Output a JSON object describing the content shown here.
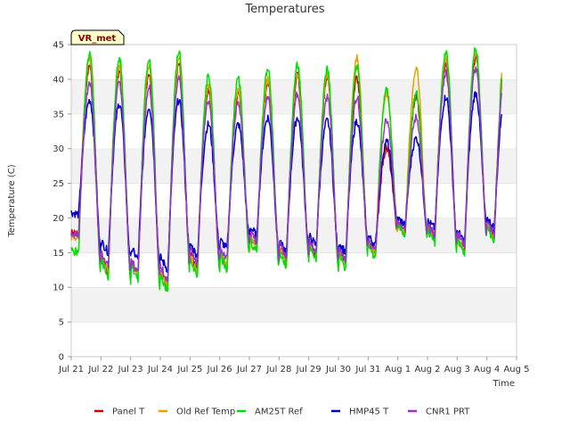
{
  "chart_data": {
    "type": "line",
    "title": "Temperatures",
    "xlabel": "Time",
    "ylabel": "Temperature (C)",
    "badge": "VR_met",
    "ylim": [
      0,
      45
    ],
    "yticks": [
      0,
      5,
      10,
      15,
      20,
      25,
      30,
      35,
      40,
      45
    ],
    "xlim": [
      0,
      15
    ],
    "xticks": [
      {
        "v": 0,
        "label": "Jul 21"
      },
      {
        "v": 1,
        "label": "Jul 22"
      },
      {
        "v": 2,
        "label": "Jul 23"
      },
      {
        "v": 3,
        "label": "Jul 24"
      },
      {
        "v": 4,
        "label": "Jul 25"
      },
      {
        "v": 5,
        "label": "Jul 26"
      },
      {
        "v": 6,
        "label": "Jul 27"
      },
      {
        "v": 7,
        "label": "Jul 28"
      },
      {
        "v": 8,
        "label": "Jul 29"
      },
      {
        "v": 9,
        "label": "Jul 30"
      },
      {
        "v": 10,
        "label": "Jul 31"
      },
      {
        "v": 11,
        "label": "Aug 1"
      },
      {
        "v": 12,
        "label": "Aug 2"
      },
      {
        "v": 13,
        "label": "Aug 3"
      },
      {
        "v": 14,
        "label": "Aug 4"
      },
      {
        "v": 15,
        "label": "Aug 5"
      }
    ],
    "x_unit": "days since Jul 21 00:00",
    "days": [
      0,
      1,
      2,
      3,
      4,
      5,
      6,
      7,
      8,
      9,
      10,
      11,
      12,
      13,
      14
    ],
    "grid": "horizontal bands",
    "legend_position": "bottom",
    "series": [
      {
        "name": "Panel T",
        "color": "#cc0000",
        "min": [
          17.5,
          12.0,
          11.5,
          10.0,
          12.5,
          13.0,
          16.0,
          14.0,
          14.5,
          13.5,
          15.0,
          18.0,
          17.5,
          15.0,
          17.5,
          23.5
        ],
        "max": [
          42.0,
          41.0,
          41.0,
          42.0,
          38.5,
          38.0,
          39.5,
          40.5,
          40.0,
          40.0,
          30.0,
          37.5,
          42.5,
          43.0
        ]
      },
      {
        "name": "Old Ref Temp",
        "color": "#e8a000",
        "min": [
          17.0,
          12.5,
          11.5,
          10.0,
          12.0,
          13.0,
          15.5,
          13.5,
          14.5,
          13.0,
          14.5,
          18.0,
          17.0,
          15.0,
          17.0,
          23.0
        ],
        "max": [
          43.0,
          42.0,
          42.0,
          43.0,
          39.0,
          38.5,
          40.0,
          41.0,
          40.5,
          43.0,
          38.0,
          41.5,
          43.0,
          44.0
        ]
      },
      {
        "name": "AM25T Ref",
        "color": "#00e000",
        "min": [
          15.0,
          11.5,
          11.0,
          9.0,
          11.5,
          12.5,
          15.0,
          13.0,
          14.0,
          12.5,
          14.0,
          17.5,
          16.5,
          14.5,
          16.5,
          22.0
        ],
        "max": [
          43.5,
          43.0,
          43.0,
          44.0,
          40.5,
          40.0,
          41.5,
          42.0,
          41.5,
          42.0,
          38.5,
          38.0,
          44.0,
          44.5
        ]
      },
      {
        "name": "HMP45 T",
        "color": "#0000cc",
        "min": [
          20.5,
          15.0,
          14.0,
          12.5,
          14.5,
          15.5,
          17.5,
          15.0,
          16.0,
          15.0,
          16.0,
          19.0,
          18.5,
          16.5,
          18.5,
          25.0
        ],
        "max": [
          37.0,
          36.5,
          36.0,
          37.0,
          33.5,
          33.5,
          34.5,
          34.5,
          34.0,
          34.0,
          31.0,
          31.5,
          37.5,
          38.0
        ]
      },
      {
        "name": "CNR1 PRT",
        "color": "#9933cc",
        "min": [
          17.5,
          13.0,
          12.0,
          11.0,
          13.5,
          14.0,
          16.5,
          14.5,
          15.0,
          14.0,
          15.0,
          18.5,
          17.5,
          16.0,
          17.5,
          24.0
        ],
        "max": [
          39.5,
          39.5,
          39.0,
          40.0,
          37.0,
          36.5,
          37.5,
          38.0,
          37.5,
          37.5,
          34.0,
          34.5,
          41.0,
          41.5
        ]
      }
    ]
  }
}
